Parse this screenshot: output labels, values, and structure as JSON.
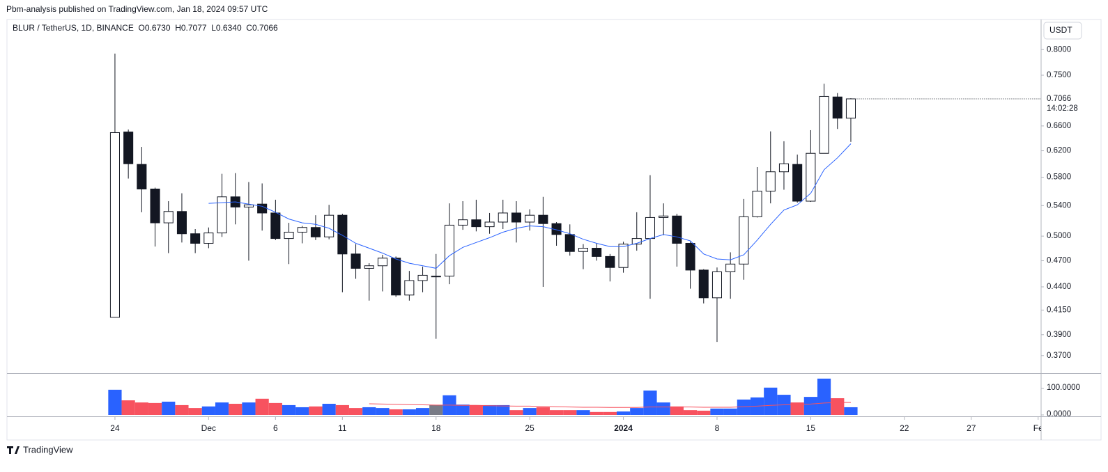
{
  "header": {
    "publisher": "Pbm-analysis published on TradingView.com, Jan 18, 2024 09:57 UTC"
  },
  "footer": {
    "logo": "TradingView"
  },
  "toolbar": {
    "currency": "USDT"
  },
  "chart_data": [
    {
      "type": "candlestick",
      "legend": "BLUR / TetherUS, 1D, BINANCE  O0.6730  H0.7077  L0.6340  C0.7066",
      "last_price_label": "0.7066",
      "countdown": "14:02:28",
      "log_scale": true,
      "up_color": "#ffffff",
      "down_color": "#131722",
      "border_color": "#131722",
      "ylim": [
        0.354,
        0.86
      ],
      "yticks": [
        {
          "value": 0.8,
          "label": "0.8000"
        },
        {
          "value": 0.75,
          "label": "0.7500"
        },
        {
          "value": 0.66,
          "label": "0.6600"
        },
        {
          "value": 0.62,
          "label": "0.6200"
        },
        {
          "value": 0.58,
          "label": "0.5800"
        },
        {
          "value": 0.54,
          "label": "0.5400"
        },
        {
          "value": 0.5,
          "label": "0.5000"
        },
        {
          "value": 0.47,
          "label": "0.4700"
        },
        {
          "value": 0.44,
          "label": "0.4400"
        },
        {
          "value": 0.415,
          "label": "0.4150"
        },
        {
          "value": 0.39,
          "label": "0.3900"
        },
        {
          "value": 0.37,
          "label": "0.3700"
        }
      ],
      "xlim": [
        -8.07,
        69.22
      ],
      "xticks": [
        {
          "value": 0,
          "label": "24"
        },
        {
          "value": 7,
          "label": "Dec"
        },
        {
          "value": 12,
          "label": "6"
        },
        {
          "value": 17,
          "label": "11"
        },
        {
          "value": 24,
          "label": "18"
        },
        {
          "value": 31,
          "label": "25"
        },
        {
          "value": 38,
          "label": "2024"
        },
        {
          "value": 45,
          "label": "8"
        },
        {
          "value": 52,
          "label": "15"
        },
        {
          "value": 59,
          "label": "22"
        },
        {
          "value": 64,
          "label": "27"
        },
        {
          "value": 69,
          "label": "Fe"
        }
      ],
      "open": [
        0.4075,
        0.65,
        0.599,
        0.563,
        0.517,
        0.532,
        0.503,
        0.491,
        0.504,
        0.552,
        0.538,
        0.542,
        0.53,
        0.497,
        0.505,
        0.511,
        0.499,
        0.527,
        0.478,
        0.461,
        0.464,
        0.473,
        0.431,
        0.447,
        0.452,
        0.452,
        0.514,
        0.521,
        0.512,
        0.518,
        0.53,
        0.518,
        0.527,
        0.516,
        0.502,
        0.481,
        0.485,
        0.475,
        0.462,
        0.49,
        0.497,
        0.524,
        0.526,
        0.491,
        0.459,
        0.428,
        0.457,
        0.466,
        0.525,
        0.56,
        0.588,
        0.599,
        0.546,
        0.616,
        0.71,
        0.673
      ],
      "high": [
        0.792,
        0.654,
        0.626,
        0.565,
        0.546,
        0.557,
        0.509,
        0.511,
        0.585,
        0.586,
        0.573,
        0.571,
        0.548,
        0.517,
        0.513,
        0.527,
        0.541,
        0.529,
        0.49,
        0.467,
        0.477,
        0.475,
        0.458,
        0.463,
        0.478,
        0.543,
        0.546,
        0.548,
        0.53,
        0.548,
        0.546,
        0.535,
        0.552,
        0.518,
        0.515,
        0.49,
        0.491,
        0.478,
        0.493,
        0.531,
        0.583,
        0.543,
        0.529,
        0.493,
        0.46,
        0.462,
        0.48,
        0.549,
        0.595,
        0.651,
        0.635,
        0.614,
        0.653,
        0.734,
        0.717,
        0.7077
      ],
      "low": [
        0.4075,
        0.578,
        0.531,
        0.487,
        0.479,
        0.492,
        0.479,
        0.485,
        0.499,
        0.515,
        0.47,
        0.507,
        0.495,
        0.466,
        0.491,
        0.495,
        0.496,
        0.434,
        0.449,
        0.425,
        0.435,
        0.429,
        0.425,
        0.434,
        0.386,
        0.443,
        0.508,
        0.506,
        0.503,
        0.509,
        0.492,
        0.507,
        0.44,
        0.488,
        0.476,
        0.46,
        0.47,
        0.446,
        0.456,
        0.482,
        0.427,
        0.501,
        0.463,
        0.438,
        0.422,
        0.383,
        0.427,
        0.448,
        0.524,
        0.543,
        0.562,
        0.544,
        0.545,
        0.616,
        0.655,
        0.634
      ],
      "close": [
        0.649,
        0.6,
        0.563,
        0.517,
        0.532,
        0.503,
        0.491,
        0.504,
        0.552,
        0.538,
        0.541,
        0.53,
        0.497,
        0.505,
        0.511,
        0.499,
        0.527,
        0.478,
        0.461,
        0.464,
        0.473,
        0.431,
        0.447,
        0.453,
        0.452,
        0.514,
        0.521,
        0.512,
        0.518,
        0.53,
        0.518,
        0.527,
        0.516,
        0.502,
        0.481,
        0.485,
        0.475,
        0.462,
        0.49,
        0.497,
        0.524,
        0.526,
        0.491,
        0.459,
        0.428,
        0.457,
        0.466,
        0.525,
        0.56,
        0.588,
        0.6,
        0.546,
        0.616,
        0.711,
        0.673,
        0.7066
      ],
      "ma": {
        "color": "#2962ff",
        "values": [
          null,
          null,
          null,
          null,
          null,
          null,
          null,
          0.543,
          0.544,
          0.545,
          0.542,
          0.539,
          0.531,
          0.522,
          0.517,
          0.515,
          0.51,
          0.501,
          0.491,
          0.485,
          0.479,
          0.472,
          0.467,
          0.464,
          0.461,
          0.476,
          0.486,
          0.492,
          0.498,
          0.505,
          0.51,
          0.513,
          0.512,
          0.508,
          0.503,
          0.496,
          0.491,
          0.487,
          0.487,
          0.491,
          0.497,
          0.502,
          0.499,
          0.494,
          0.478,
          0.472,
          0.471,
          0.477,
          0.495,
          0.515,
          0.534,
          0.541,
          0.557,
          0.591,
          0.609,
          0.631
        ]
      }
    },
    {
      "type": "bar",
      "up_color": "#2962ff",
      "down_color": "#f7525f",
      "neutral_color": "#787b86",
      "ylim": [
        0,
        155
      ],
      "yticks": [
        {
          "value": 100,
          "label": "100.0000"
        },
        {
          "value": 0,
          "label": "0.0000"
        }
      ],
      "values": [
        95,
        55,
        47,
        45,
        50,
        37,
        26,
        32,
        47,
        42,
        47,
        61,
        45,
        37,
        29,
        32,
        42,
        37,
        26,
        29,
        26,
        21,
        21,
        26,
        37,
        74,
        39,
        37,
        37,
        37,
        18,
        26,
        29,
        18,
        18,
        18,
        11,
        11,
        13,
        26,
        92,
        47,
        32,
        18,
        16,
        24,
        24,
        58,
        66,
        103,
        76,
        47,
        68,
        137,
        63,
        29
      ],
      "ma": {
        "color": "#f7525f",
        "values": [
          null,
          null,
          null,
          null,
          null,
          null,
          null,
          null,
          null,
          null,
          null,
          null,
          null,
          null,
          null,
          null,
          null,
          null,
          null,
          42,
          41,
          40,
          39,
          38,
          37,
          37,
          36,
          36,
          35,
          34,
          33,
          33,
          32,
          31,
          30,
          29,
          29,
          28,
          28,
          28,
          30,
          30,
          30,
          30,
          29,
          29,
          29,
          31,
          33,
          36,
          38,
          39,
          41,
          45,
          47,
          47
        ]
      }
    }
  ]
}
